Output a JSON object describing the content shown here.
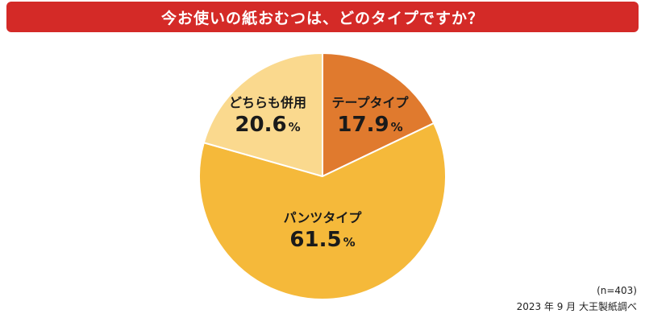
{
  "title": "今お使いの紙おむつは、どのタイプですか？",
  "chart_data": {
    "type": "pie",
    "start_angle_deg": 0,
    "direction": "clockwise",
    "slices": [
      {
        "label": "テープタイプ",
        "value": 17.9,
        "display": "17.9",
        "unit": "%",
        "color": "#e07a2e"
      },
      {
        "label": "パンツタイプ",
        "value": 61.5,
        "display": "61.5",
        "unit": "%",
        "color": "#f5b93a"
      },
      {
        "label": "どちらも併用",
        "value": 20.6,
        "display": "20.6",
        "unit": "%",
        "color": "#fad98e"
      }
    ]
  },
  "notes": {
    "sample": "(n=403)",
    "source": "2023 年 9 月 大王製紙調べ"
  },
  "colors": {
    "title_background": "#d42a27",
    "title_text": "#ffffff",
    "slice_border": "#ffffff"
  }
}
